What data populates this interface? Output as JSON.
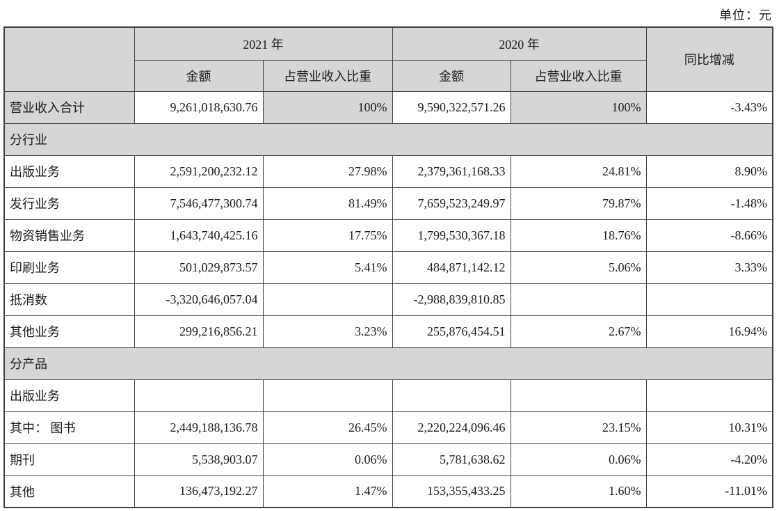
{
  "unit_label": "单位：元",
  "colors": {
    "shaded_bg": "#d6d6d6",
    "border": "#404040",
    "page_bg": "#ffffff"
  },
  "table": {
    "header": {
      "corner": "",
      "year2021": "2021 年",
      "year2020": "2020 年",
      "yoy": "同比增减",
      "amount2021": "金额",
      "share2021": "占营业收入比重",
      "amount2020": "金额",
      "share2020": "占营业收入比重"
    },
    "rows": [
      {
        "kind": "total",
        "label": "营业收入合计",
        "amount_2021": "9,261,018,630.76",
        "share_2021": "100%",
        "amount_2020": "9,590,322,571.26",
        "share_2020": "100%",
        "yoy": "-3.43%"
      },
      {
        "kind": "section",
        "label": "分行业"
      },
      {
        "kind": "data",
        "label": "出版业务",
        "amount_2021": "2,591,200,232.12",
        "share_2021": "27.98%",
        "amount_2020": "2,379,361,168.33",
        "share_2020": "24.81%",
        "yoy": "8.90%"
      },
      {
        "kind": "data",
        "label": "发行业务",
        "amount_2021": "7,546,477,300.74",
        "share_2021": "81.49%",
        "amount_2020": "7,659,523,249.97",
        "share_2020": "79.87%",
        "yoy": "-1.48%"
      },
      {
        "kind": "data",
        "label": "物资销售业务",
        "amount_2021": "1,643,740,425.16",
        "share_2021": "17.75%",
        "amount_2020": "1,799,530,367.18",
        "share_2020": "18.76%",
        "yoy": "-8.66%"
      },
      {
        "kind": "data",
        "label": "印刷业务",
        "amount_2021": "501,029,873.57",
        "share_2021": "5.41%",
        "amount_2020": "484,871,142.12",
        "share_2020": "5.06%",
        "yoy": "3.33%"
      },
      {
        "kind": "data",
        "label": "抵消数",
        "amount_2021": "-3,320,646,057.04",
        "share_2021": "",
        "amount_2020": "-2,988,839,810.85",
        "share_2020": "",
        "yoy": ""
      },
      {
        "kind": "data",
        "label": "其他业务",
        "amount_2021": "299,216,856.21",
        "share_2021": "3.23%",
        "amount_2020": "255,876,454.51",
        "share_2020": "2.67%",
        "yoy": "16.94%"
      },
      {
        "kind": "section",
        "label": "分产品"
      },
      {
        "kind": "data",
        "label": "出版业务",
        "amount_2021": "",
        "share_2021": "",
        "amount_2020": "",
        "share_2020": "",
        "yoy": ""
      },
      {
        "kind": "data",
        "label": "其中： 图书",
        "amount_2021": "2,449,188,136.78",
        "share_2021": "26.45%",
        "amount_2020": "2,220,224,096.46",
        "share_2020": "23.15%",
        "yoy": "10.31%"
      },
      {
        "kind": "data",
        "label": "期刊",
        "amount_2021": "5,538,903.07",
        "share_2021": "0.06%",
        "amount_2020": "5,781,638.62",
        "share_2020": "0.06%",
        "yoy": "-4.20%"
      },
      {
        "kind": "data",
        "label": "其他",
        "amount_2021": "136,473,192.27",
        "share_2021": "1.47%",
        "amount_2020": "153,355,433.25",
        "share_2020": "1.60%",
        "yoy": "-11.01%"
      }
    ]
  }
}
